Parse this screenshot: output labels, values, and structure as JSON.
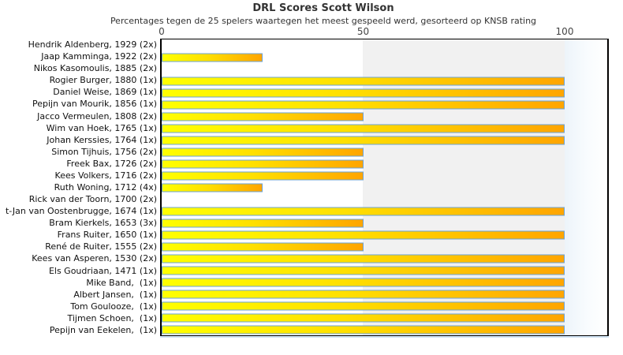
{
  "chart": {
    "title": "DRL Scores Scott Wilson",
    "subtitle": "Percentages tegen de 25 spelers waartegen het meest gespeeld werd, gesorteerd op KNSB rating"
  },
  "chart_data": {
    "type": "bar",
    "orientation": "horizontal",
    "title": "DRL Scores Scott Wilson",
    "subtitle": "Percentages tegen de 25 spelers waartegen het meest gespeeld werd, gesorteerd op KNSB rating",
    "xlabel": "",
    "ylabel": "",
    "xlim": [
      0,
      111
    ],
    "x_ticks": [
      {
        "label": "0",
        "value": 0
      },
      {
        "label": "50",
        "value": 50
      },
      {
        "label": "100",
        "value": 100
      }
    ],
    "grid": false,
    "legend": "none",
    "categories": [
      "Hendrik Aldenberg, 1929 (2x)",
      "Jaap Kamminga, 1922 (2x)",
      "Nikos Kasomoulis, 1885 (2x)",
      "Rogier Burger, 1880 (1x)",
      "Daniel Weise, 1869 (1x)",
      "Pepijn van Mourik, 1856 (1x)",
      "Jacco Vermeulen, 1808 (2x)",
      "Wim van Hoek, 1765 (1x)",
      "Johan Kerssies, 1764 (1x)",
      "Simon Tijhuis, 1756 (2x)",
      "Freek Bax, 1726 (2x)",
      "Kees Volkers, 1716 (2x)",
      "Ruth Woning, 1712 (4x)",
      "Rick van der Toorn, 1700 (2x)",
      "t-Jan van Oostenbrugge, 1674 (1x)",
      "Bram Kierkels, 1653 (3x)",
      "Frans Ruiter, 1650 (1x)",
      "René de Ruiter, 1555 (2x)",
      "Kees van Asperen, 1530 (2x)",
      "Els Goudriaan, 1471 (1x)",
      "Mike Band,  (1x)",
      "Albert Jansen,  (1x)",
      "Tom Goulooze,  (1x)",
      "Tijmen Schoen,  (1x)",
      "Pepijn van Eekelen,  (1x)"
    ],
    "values": [
      0,
      25,
      0,
      100,
      100,
      100,
      50,
      100,
      100,
      50,
      50,
      50,
      25,
      0,
      100,
      50,
      100,
      50,
      100,
      100,
      100,
      100,
      100,
      100,
      100
    ],
    "colors": {
      "bar_gradient_start": "#ffff00",
      "bar_gradient_end": "#ffa500",
      "bar_border": "#6ba3d6",
      "band_50_100": "#f1f1f1",
      "band_over_100": "#edf4fa",
      "plot_border": "#000000",
      "plot_underline": "#cfe2f3"
    }
  }
}
